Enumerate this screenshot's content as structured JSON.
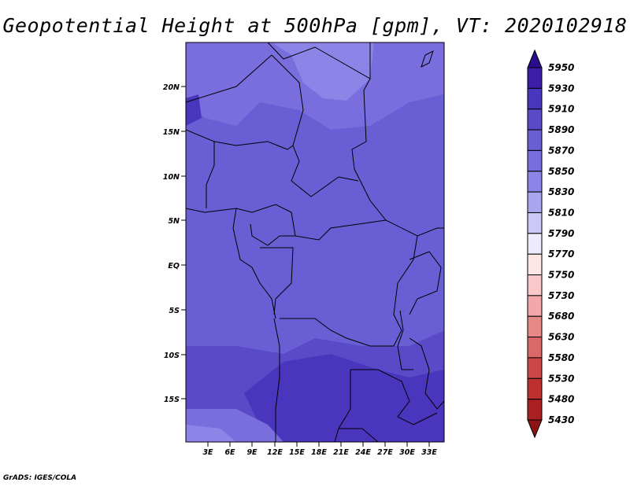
{
  "title": "Geopotential Height at 500hPa [gpm], VT: 2020102918",
  "credit": "GrADS: IGES/COLA",
  "map": {
    "lat_labels": [
      "20N",
      "15N",
      "10N",
      "5N",
      "EQ",
      "5S",
      "10S",
      "15S"
    ],
    "lon_labels": [
      "3E",
      "6E",
      "9E",
      "12E",
      "15E",
      "18E",
      "21E",
      "24E",
      "27E",
      "30E",
      "33E"
    ]
  },
  "colorbar": {
    "levels": [
      "5950",
      "5930",
      "5910",
      "5890",
      "5870",
      "5850",
      "5830",
      "5810",
      "5790",
      "5770",
      "5750",
      "5730",
      "5680",
      "5630",
      "5580",
      "5530",
      "5480",
      "5430"
    ],
    "colors": [
      "#2a0c8c",
      "#3a1ea8",
      "#4a36bc",
      "#5a4ac8",
      "#6a5ed4",
      "#7a6ede",
      "#8c84e6",
      "#aaa6ee",
      "#ccc8f6",
      "#eceafc",
      "#ffe6e6",
      "#fac8c8",
      "#f2a8a8",
      "#e68888",
      "#da6868",
      "#cc4848",
      "#be3030",
      "#aa2020",
      "#8c1414"
    ]
  }
}
